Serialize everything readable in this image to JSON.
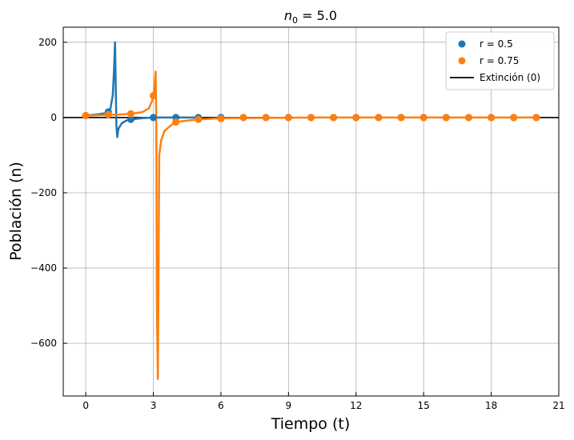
{
  "chart_data": {
    "type": "line",
    "title": "n0 = 5.0",
    "title_main": "n",
    "title_sub": "0",
    "title_rest": " = 5.0",
    "xlabel": "Tiempo (t)",
    "ylabel": "Población (n)",
    "xlim": [
      -1,
      21
    ],
    "ylim": [
      -740,
      240
    ],
    "x_ticks": [
      0,
      3,
      6,
      9,
      12,
      15,
      18,
      21
    ],
    "y_ticks": [
      200,
      0,
      -200,
      -400,
      -600
    ],
    "y_tick_labels": [
      "200",
      "0",
      "−200",
      "−400",
      "−600"
    ],
    "grid": true,
    "legend_placement": "top-right",
    "series": [
      {
        "name": "r = 0.5",
        "color": "#1f77b4",
        "marker_x": [
          0,
          1,
          2,
          3,
          4,
          5,
          6,
          7,
          8,
          9,
          10,
          11,
          12,
          13,
          14,
          15,
          16,
          17,
          18,
          19,
          20
        ],
        "marker_y": [
          5,
          15,
          -5,
          0,
          0,
          0,
          0,
          0,
          0,
          0,
          0,
          0,
          0,
          0,
          0,
          0,
          0,
          0,
          0,
          0,
          0
        ],
        "curve_x": [
          0,
          0.5,
          0.9,
          1.0,
          1.1,
          1.2,
          1.25,
          1.3,
          1.33,
          1.36,
          1.4,
          1.45,
          1.6,
          1.8,
          2.0,
          2.5,
          3.0,
          3.5,
          4.0,
          5.0
        ],
        "curve_y": [
          5,
          8,
          12,
          15,
          25,
          60,
          120,
          200,
          80,
          -20,
          -52,
          -30,
          -15,
          -8,
          -5,
          -2,
          0,
          0,
          0,
          0
        ]
      },
      {
        "name": "r = 0.75",
        "color": "#ff7f0e",
        "marker_x": [
          0,
          1,
          2,
          3,
          4,
          5,
          6,
          7,
          8,
          9,
          10,
          11,
          12,
          13,
          14,
          15,
          16,
          17,
          18,
          19,
          20
        ],
        "marker_y": [
          5,
          8,
          10,
          58,
          -12,
          -5,
          -3,
          0,
          0,
          0,
          0,
          0,
          0,
          0,
          0,
          0,
          0,
          0,
          0,
          0,
          0
        ],
        "curve_x": [
          0,
          0.5,
          1.0,
          1.5,
          2.0,
          2.5,
          2.8,
          2.95,
          3.05,
          3.1,
          3.13,
          3.16,
          3.2,
          3.26,
          3.35,
          3.5,
          3.8,
          4.0,
          4.5,
          5.0,
          6.0,
          8.0,
          10,
          15,
          20
        ],
        "curve_y": [
          5,
          6,
          7,
          8,
          10,
          14,
          24,
          45,
          80,
          122,
          0,
          -500,
          -695,
          -100,
          -60,
          -35,
          -20,
          -12,
          -8,
          -5,
          -2,
          -1,
          0,
          0,
          0
        ]
      },
      {
        "name": "Extinción (0)",
        "color": "#000000",
        "line_y": 0
      }
    ],
    "legend": [
      {
        "label": "r = 0.5",
        "kind": "marker",
        "color": "#1f77b4"
      },
      {
        "label": "r = 0.75",
        "kind": "marker",
        "color": "#ff7f0e"
      },
      {
        "label": "Extinción (0)",
        "kind": "line",
        "color": "#000000"
      }
    ]
  }
}
